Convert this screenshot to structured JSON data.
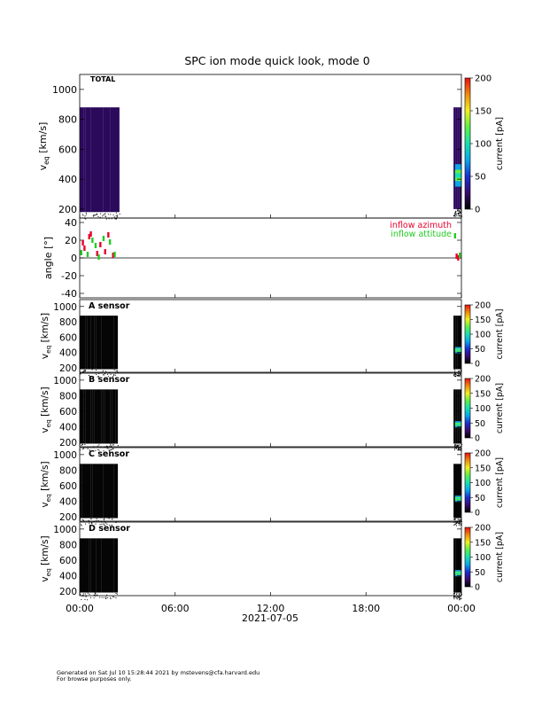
{
  "chart_data": [
    {
      "type": "heatmap",
      "panel_label": "TOTAL",
      "title": "SPC ion mode quick look, mode 0",
      "ylabel_main": "v",
      "ylabel_sub": "eq",
      "ylabel_unit": "[km/s]",
      "y_ticks": [
        200,
        400,
        600,
        800,
        1000
      ],
      "ylim": [
        140,
        1100
      ],
      "colorbar_label": "current [pA]",
      "colorbar_ticks": [
        0,
        50,
        100,
        150,
        200
      ],
      "colorbar_range": [
        0,
        200
      ],
      "x_hours_range": [
        0,
        24
      ],
      "data_blocks": [
        {
          "start_hour": 0.0,
          "end_hour": 2.5,
          "vmin": 180,
          "vmax": 880,
          "level": "low"
        },
        {
          "start_hour": 23.5,
          "end_hour": 24.0,
          "vmin": 200,
          "vmax": 880,
          "level": "low"
        },
        {
          "start_hour": 23.6,
          "end_hour": 24.0,
          "vmin": 350,
          "vmax": 500,
          "level": "high",
          "peak_current_pA": 80
        }
      ]
    },
    {
      "type": "scatter",
      "ylabel": "angle [°]",
      "y_ticks": [
        -40,
        -20,
        0,
        20,
        40
      ],
      "ylim": [
        -45,
        45
      ],
      "legend": [
        "inflow azimuth",
        "inflow attitude"
      ],
      "legend_colors": [
        "#e8002d",
        "#22cc22"
      ],
      "series": [
        {
          "name": "inflow azimuth",
          "color": "#e8002d",
          "x_hours": [
            0.2,
            0.3,
            0.6,
            0.7,
            1.1,
            1.3,
            1.6,
            1.8,
            2.1,
            23.7,
            23.8
          ],
          "y": [
            17,
            11,
            24,
            27,
            5,
            15,
            7,
            26,
            3,
            2,
            0
          ]
        },
        {
          "name": "inflow attitude",
          "color": "#22cc22",
          "x_hours": [
            0.1,
            0.5,
            0.8,
            1.0,
            1.2,
            1.5,
            1.9,
            2.2,
            23.6,
            23.9
          ],
          "y": [
            6,
            4,
            20,
            14,
            1,
            22,
            18,
            4,
            25,
            3
          ]
        }
      ],
      "zero_line": true
    },
    {
      "type": "heatmap",
      "panel_label": "A sensor",
      "ylabel_main": "v",
      "ylabel_sub": "eq",
      "ylabel_unit": "[km/s]",
      "y_ticks": [
        200,
        400,
        600,
        800,
        1000
      ],
      "colorbar_label": "current [pA]",
      "colorbar_ticks": [
        0,
        50,
        100,
        150,
        200
      ]
    },
    {
      "type": "heatmap",
      "panel_label": "B sensor",
      "ylabel_main": "v",
      "ylabel_sub": "eq",
      "ylabel_unit": "[km/s]",
      "y_ticks": [
        200,
        400,
        600,
        800,
        1000
      ],
      "colorbar_label": "current [pA]",
      "colorbar_ticks": [
        0,
        50,
        100,
        150,
        200
      ]
    },
    {
      "type": "heatmap",
      "panel_label": "C sensor",
      "ylabel_main": "v",
      "ylabel_sub": "eq",
      "ylabel_unit": "[km/s]",
      "y_ticks": [
        200,
        400,
        600,
        800,
        1000
      ],
      "colorbar_label": "current [pA]",
      "colorbar_ticks": [
        0,
        50,
        100,
        150,
        200
      ]
    },
    {
      "type": "heatmap",
      "panel_label": "D sensor",
      "ylabel_main": "v",
      "ylabel_sub": "eq",
      "ylabel_unit": "[km/s]",
      "y_ticks": [
        200,
        400,
        600,
        800,
        1000
      ],
      "colorbar_label": "current [pA]",
      "colorbar_ticks": [
        0,
        50,
        100,
        150,
        200
      ]
    }
  ],
  "x_axis": {
    "tick_labels": [
      "00:00",
      "06:00",
      "12:00",
      "18:00",
      "00:00"
    ],
    "tick_hours": [
      0,
      6,
      12,
      18,
      24
    ],
    "date_label": "2021-07-05"
  },
  "footer": {
    "line1": "Generated on Sat Jul 10 15:28:44 2021 by mstevens@cfa.harvard.edu",
    "line2": "For browse purposes only."
  },
  "colors": {
    "colormap": [
      "#000000",
      "#3a0a6e",
      "#1a2fd0",
      "#0aa8e8",
      "#18e0b0",
      "#5ef048",
      "#f0f020",
      "#f08a10",
      "#e81010"
    ],
    "low_signal": "#2a0a5a"
  }
}
